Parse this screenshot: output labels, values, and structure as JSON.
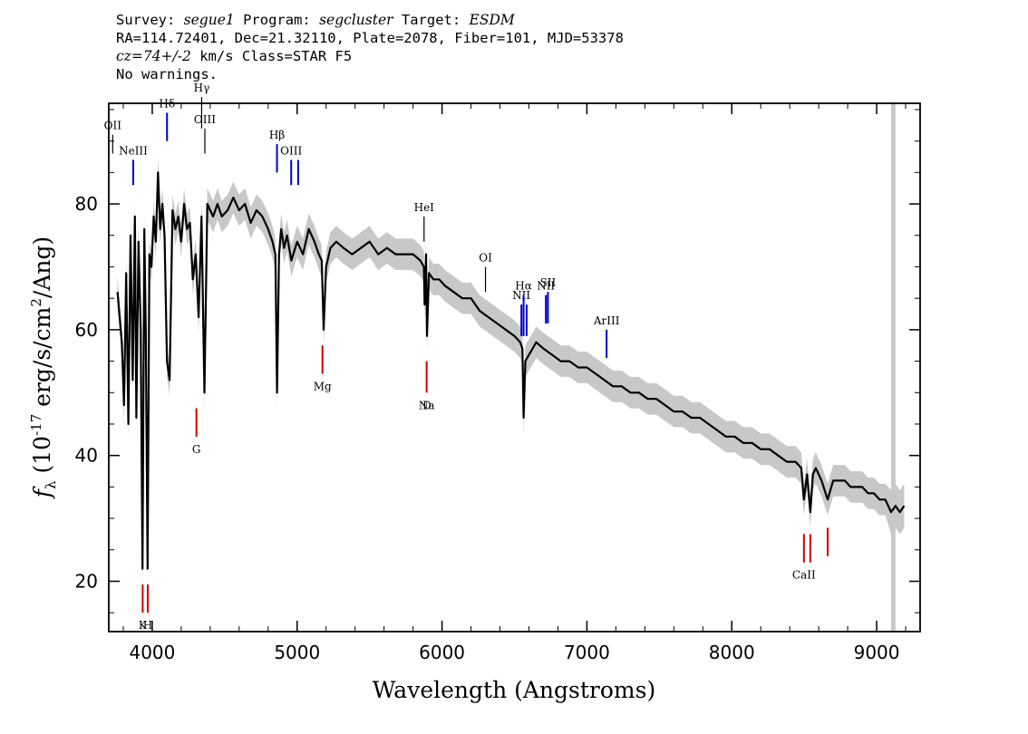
{
  "header": {
    "survey_label": "Survey:",
    "survey": "segue1",
    "program_label": "Program:",
    "program": "segcluster",
    "target_label": "Target:",
    "target": "ESDM",
    "line2": "RA=114.72401, Dec=21.32110, Plate=2078, Fiber=101, MJD=53378",
    "cz": "cz=74+/-2",
    "cz_rest": " km/s Class=STAR F5",
    "line4": "No warnings."
  },
  "chart_data": {
    "type": "line",
    "xlabel": "Wavelength (Angstroms)",
    "ylabel_prefix": "f",
    "ylabel_sub": "λ",
    "ylabel_main": " (10",
    "ylabel_exp": "-17",
    "ylabel_mid": " erg/s/cm",
    "ylabel_exp2": "2",
    "ylabel_end": "/Ang)",
    "xlim": [
      3700,
      9300
    ],
    "ylim": [
      12,
      96
    ],
    "x_ticks": [
      4000,
      5000,
      6000,
      7000,
      8000,
      9000
    ],
    "y_ticks": [
      20,
      40,
      60,
      80
    ],
    "colors": {
      "flux": "#000000",
      "error": "#c8c8c8",
      "emission": "#0000cc",
      "absorption": "#cc0000",
      "neutral": "#000000",
      "mask": "#c8c8c8"
    },
    "masked_band": [
      9100,
      9130
    ],
    "series": [
      {
        "role": "flux",
        "x": [
          3760,
          3790,
          3805,
          3820,
          3835,
          3850,
          3865,
          3880,
          3890,
          3905,
          3920,
          3933,
          3945,
          3955,
          3968,
          3980,
          3995,
          4010,
          4025,
          4040,
          4055,
          4070,
          4085,
          4102,
          4120,
          4140,
          4160,
          4180,
          4200,
          4220,
          4240,
          4260,
          4280,
          4300,
          4320,
          4340,
          4360,
          4380,
          4400,
          4420,
          4450,
          4480,
          4520,
          4560,
          4600,
          4640,
          4680,
          4720,
          4760,
          4800,
          4830,
          4850,
          4861,
          4875,
          4890,
          4910,
          4930,
          4960,
          5000,
          5040,
          5080,
          5120,
          5150,
          5170,
          5183,
          5200,
          5230,
          5270,
          5320,
          5380,
          5440,
          5500,
          5560,
          5620,
          5680,
          5740,
          5800,
          5850,
          5875,
          5880,
          5890,
          5896,
          5910,
          5940,
          5980,
          6020,
          6080,
          6140,
          6200,
          6260,
          6320,
          6380,
          6440,
          6500,
          6540,
          6555,
          6563,
          6575,
          6600,
          6650,
          6700,
          6760,
          6820,
          6880,
          6940,
          7000,
          7060,
          7120,
          7180,
          7240,
          7300,
          7360,
          7420,
          7480,
          7540,
          7600,
          7660,
          7720,
          7780,
          7840,
          7900,
          7960,
          8020,
          8080,
          8140,
          8200,
          8260,
          8320,
          8380,
          8440,
          8480,
          8498,
          8520,
          8542,
          8560,
          8580,
          8620,
          8662,
          8700,
          8740,
          8780,
          8820,
          8860,
          8900,
          8940,
          8980,
          9020,
          9060,
          9100,
          9130,
          9160,
          9190
        ],
        "y": [
          66,
          58,
          48,
          69,
          45,
          75,
          52,
          78,
          46,
          74,
          60,
          22,
          76,
          60,
          22,
          72,
          70,
          78,
          74,
          85,
          76,
          80,
          75,
          55,
          52,
          79,
          76,
          78,
          74,
          80,
          76,
          77,
          68,
          72,
          62,
          78,
          50,
          80,
          79,
          78,
          80,
          78,
          79,
          81,
          79,
          80,
          77,
          79,
          78,
          76,
          74,
          72,
          50,
          72,
          76,
          73,
          75,
          71,
          74,
          72,
          76,
          74,
          72,
          71,
          60,
          70,
          73,
          74,
          73,
          72,
          73,
          74,
          72,
          73,
          72,
          72,
          72,
          71,
          70,
          64,
          72,
          59,
          69,
          68,
          68,
          67,
          66,
          65,
          65,
          63,
          62,
          61,
          60,
          59,
          58,
          57,
          46,
          55,
          56,
          58,
          57,
          56,
          55,
          55,
          54,
          54,
          53,
          52,
          51,
          51,
          50,
          50,
          49,
          49,
          48,
          47,
          47,
          46,
          46,
          45,
          44,
          43,
          43,
          42,
          42,
          41,
          41,
          40,
          39,
          39,
          38,
          33,
          37,
          31,
          37,
          38,
          36,
          33,
          36,
          36,
          36,
          35,
          35,
          35,
          34,
          34,
          33,
          33,
          31,
          32,
          31,
          32
        ]
      },
      {
        "role": "error-envelope",
        "half_width": [
          2.5,
          2.5,
          2.5,
          2.5,
          2.5,
          2.5,
          2.5,
          2.5,
          2.5,
          2.5,
          2.5,
          2.5,
          2.5,
          2.5,
          2.5,
          2.5,
          2.5,
          2.5,
          2.5,
          2.5,
          2.5,
          2.5,
          2.5,
          2.5,
          2.5,
          2.5,
          2.5,
          2.5,
          2.5,
          2.5,
          2.5,
          2.5,
          2.5,
          2.5,
          2.5,
          2.5,
          2.5,
          2.5,
          2.5,
          2.5,
          2.5,
          2.5,
          2.5,
          2.5,
          2.5,
          2.5,
          2.5,
          2.5,
          2.5,
          2.5,
          2.5,
          2.5,
          2.5,
          2.5,
          2.5,
          2.5,
          2.5,
          2.5,
          2.5,
          2.5,
          2.5,
          2.5,
          2.5,
          2.5,
          2.5,
          2.5,
          2.5,
          2.5,
          2.5,
          2.5,
          2.5,
          2.5,
          2.5,
          2.5,
          2.5,
          2.5,
          2.5,
          2.5,
          2.5,
          2.5,
          2.5,
          2.5,
          2.5,
          2.5,
          2.5,
          2.5,
          2.5,
          2.5,
          2.5,
          2.5,
          2.5,
          2.5,
          2.5,
          2.5,
          2.5,
          2.5,
          2.5,
          2.5,
          2.5,
          2.5,
          2.5,
          2.5,
          2.5,
          2.5,
          2.5,
          2.5,
          2.5,
          2.5,
          2.5,
          2.5,
          2.5,
          2.5,
          2.5,
          2.5,
          2.5,
          2.5,
          2.5,
          2.5,
          2.5,
          2.5,
          2.5,
          2.5,
          2.5,
          2.5,
          2.5,
          2.5,
          2.5,
          2.5,
          2.5,
          2.5,
          2.5,
          2.5,
          2.5,
          2.5,
          2.5,
          2.5,
          2.5,
          2.5,
          2.5,
          2.5,
          2.5,
          2.5,
          2.5,
          2.5,
          2.5,
          2.5,
          2.5,
          2.5,
          3.5,
          3.5,
          3.5,
          3.5
        ]
      }
    ],
    "line_markers": [
      {
        "label": "OII",
        "x": 3727,
        "y1": 88,
        "y2": 91,
        "color": "neutral"
      },
      {
        "label": "NeIII",
        "x": 3869,
        "y1": 83,
        "y2": 87,
        "color": "emission"
      },
      {
        "label": "Hδ",
        "x": 4102,
        "y1": 90,
        "y2": 94.5,
        "color": "emission"
      },
      {
        "label": "Hγ",
        "x": 4341,
        "y1": 92,
        "y2": 97,
        "color": "neutral"
      },
      {
        "label": "OIII",
        "x": 4363,
        "y1": 88,
        "y2": 92,
        "color": "neutral"
      },
      {
        "label": "Hβ",
        "x": 4861,
        "y1": 85,
        "y2": 89.5,
        "color": "emission"
      },
      {
        "label": "OIII",
        "x": 4959,
        "y1": 83,
        "y2": 87,
        "color": "emission"
      },
      {
        "label": "",
        "x": 5007,
        "y1": 83,
        "y2": 87,
        "color": "emission"
      },
      {
        "label": "HeI",
        "x": 5876,
        "y1": 74,
        "y2": 78,
        "color": "neutral"
      },
      {
        "label": "OI",
        "x": 6300,
        "y1": 66,
        "y2": 70,
        "color": "neutral"
      },
      {
        "label": "NII",
        "x": 6548,
        "y1": 59,
        "y2": 64,
        "color": "emission"
      },
      {
        "label": "Hα",
        "x": 6563,
        "y1": 59,
        "y2": 65.5,
        "color": "emission"
      },
      {
        "label": "",
        "x": 6584,
        "y1": 59,
        "y2": 64,
        "color": "emission"
      },
      {
        "label": "NII",
        "x": 6717,
        "y1": 61,
        "y2": 65.5,
        "color": "emission"
      },
      {
        "label": "SII",
        "x": 6731,
        "y1": 61,
        "y2": 66,
        "color": "emission"
      },
      {
        "label": "ArIII",
        "x": 7136,
        "y1": 55.5,
        "y2": 60,
        "color": "emission"
      },
      {
        "label": "K",
        "x": 3934,
        "y1": 15,
        "y2": 19.5,
        "color": "absorption"
      },
      {
        "label": "H",
        "x": 3969,
        "y1": 15,
        "y2": 19.5,
        "color": "absorption"
      },
      {
        "label": "G",
        "x": 4305,
        "y1": 43,
        "y2": 47.5,
        "color": "absorption"
      },
      {
        "label": "Mg",
        "x": 5175,
        "y1": 53,
        "y2": 57.5,
        "color": "absorption"
      },
      {
        "label": "Na",
        "x": 5894,
        "y1": 50,
        "y2": 55,
        "color": "absorption"
      },
      {
        "label": "D",
        "x": 5896,
        "y1": 50,
        "y2": 50,
        "color": "absorption"
      },
      {
        "label": "CaII",
        "x": 8498,
        "y1": 23,
        "y2": 27.5,
        "color": "absorption"
      },
      {
        "label": "",
        "x": 8542,
        "y1": 23,
        "y2": 27.5,
        "color": "absorption"
      },
      {
        "label": "",
        "x": 8662,
        "y1": 24,
        "y2": 28.5,
        "color": "absorption"
      }
    ]
  }
}
